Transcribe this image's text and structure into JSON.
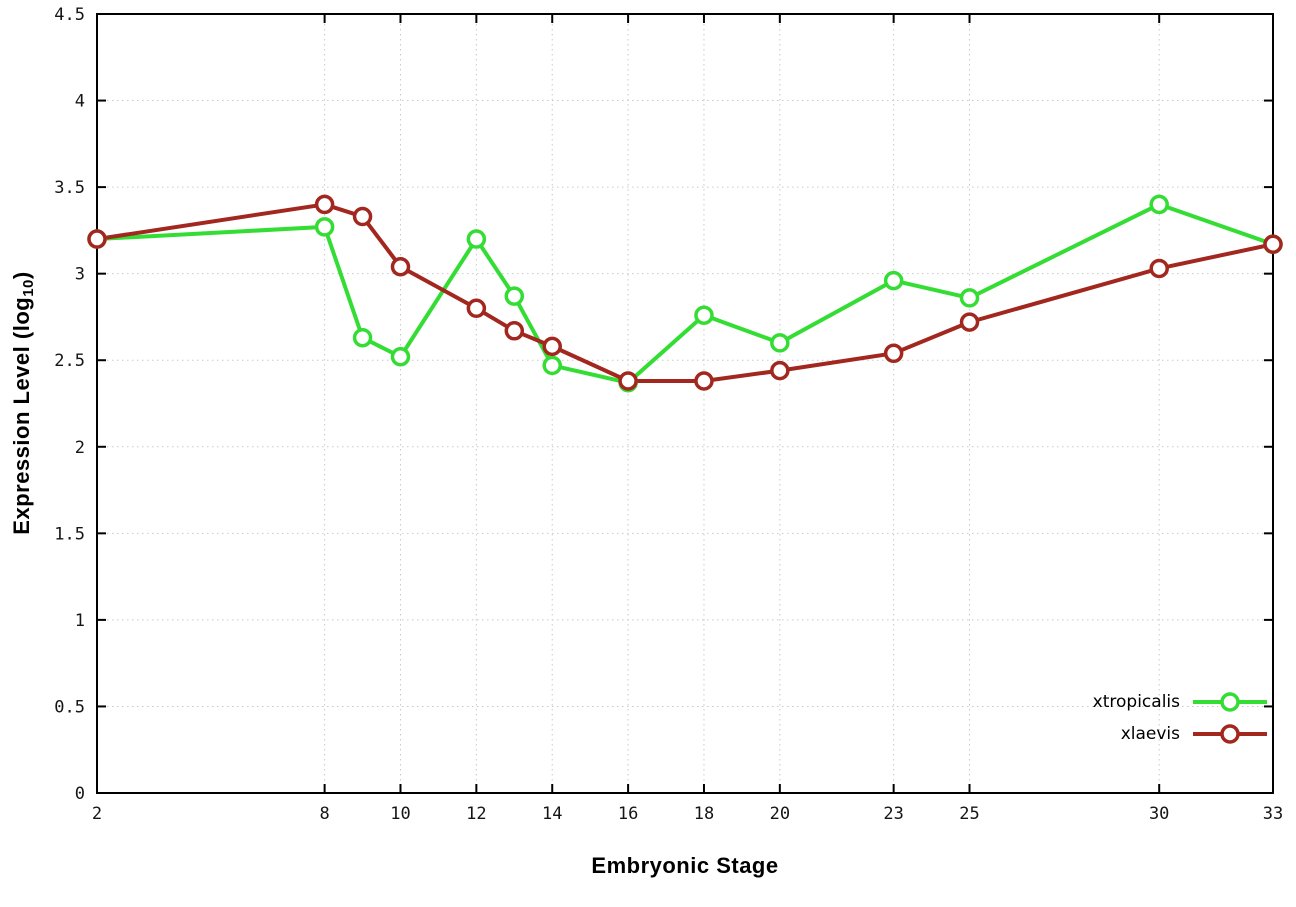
{
  "chart_data": {
    "type": "line",
    "title": "",
    "xlabel": "Embryonic Stage",
    "ylabel_prefix": "Expression Level (log",
    "ylabel_sub": "10",
    "ylabel_suffix": ")",
    "xlim": [
      2,
      33
    ],
    "ylim": [
      0,
      4.5
    ],
    "xticks": [
      2,
      8,
      10,
      12,
      14,
      16,
      18,
      20,
      23,
      25,
      30,
      33
    ],
    "yticks": [
      0,
      0.5,
      1,
      1.5,
      2,
      2.5,
      3,
      3.5,
      4,
      4.5
    ],
    "ytick_labels": [
      "0",
      "0.5",
      "1",
      "1.5",
      "2",
      "2.5",
      "3",
      "3.5",
      "4",
      "4.5"
    ],
    "grid": true,
    "legend_position": "bottom-right",
    "marker": "open-circle",
    "x": [
      2,
      8,
      9,
      10,
      12,
      13,
      14,
      16,
      18,
      20,
      23,
      25,
      30,
      33
    ],
    "series": [
      {
        "name": "xtropicalis",
        "color": "#33dd33",
        "values": [
          3.2,
          3.27,
          2.63,
          2.52,
          3.2,
          2.87,
          2.47,
          2.37,
          2.76,
          2.6,
          2.96,
          2.86,
          3.4,
          3.17
        ]
      },
      {
        "name": "xlaevis",
        "color": "#a2271f",
        "values": [
          3.2,
          3.4,
          3.33,
          3.04,
          2.8,
          2.67,
          2.58,
          2.38,
          2.38,
          2.44,
          2.54,
          2.72,
          3.03,
          3.17
        ]
      }
    ]
  }
}
